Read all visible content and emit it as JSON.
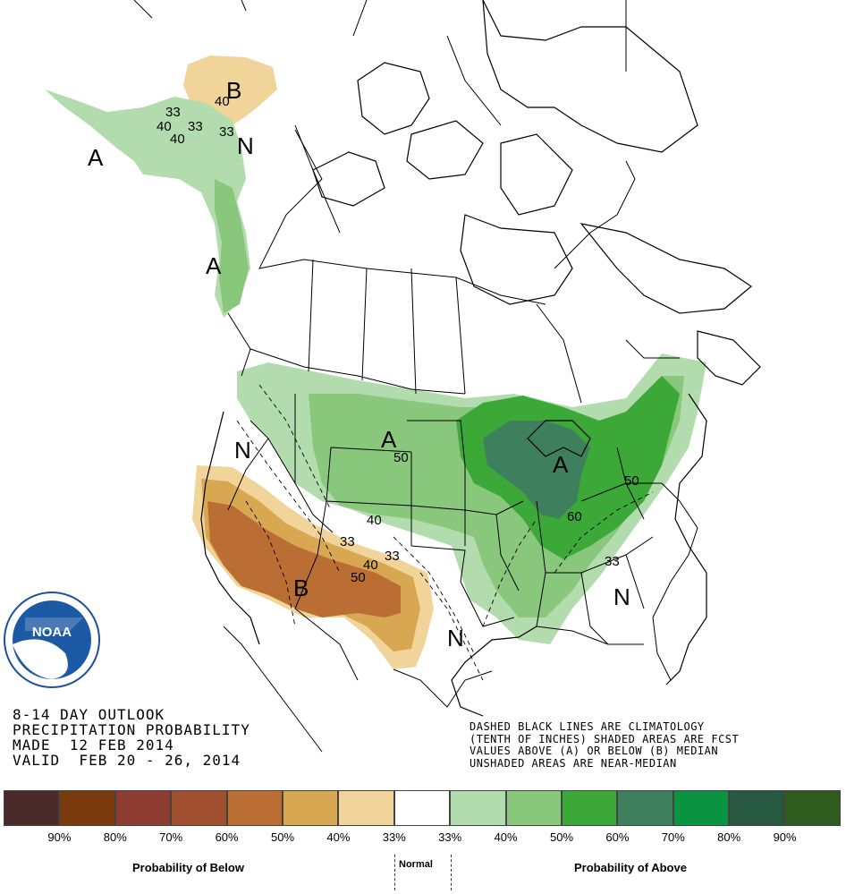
{
  "title_lines": [
    "8-14 DAY OUTLOOK",
    "PRECIPITATION PROBABILITY",
    "MADE  12 FEB 2014",
    "VALID  FEB 20 - 26, 2014"
  ],
  "notes": [
    "DASHED BLACK LINES ARE CLIMATOLOGY",
    "(TENTH OF INCHES) SHADED AREAS ARE FCST",
    "VALUES ABOVE (A) OR BELOW (B) MEDIAN",
    "UNSHADED AREAS ARE NEAR-MEDIAN"
  ],
  "logo_text": "NOAA",
  "legend": {
    "colors": [
      "#4a2a2a",
      "#7a3b0c",
      "#8e3b30",
      "#a0502e",
      "#bb6e34",
      "#d8a752",
      "#f0d49a",
      "#ffffff",
      "#b2dcae",
      "#88c77c",
      "#3ca838",
      "#3e7f5e",
      "#0a9442",
      "#26593f",
      "#2f5c1e"
    ],
    "tick_labels": [
      "90%",
      "80%",
      "70%",
      "60%",
      "50%",
      "40%",
      "33%",
      "33%",
      "40%",
      "50%",
      "60%",
      "70%",
      "80%",
      "90%"
    ],
    "below_caption": "Probability of Below",
    "normal_caption": "Normal",
    "above_caption": "Probability of Above"
  },
  "map_labels": {
    "alaska_B": "B",
    "alaska_40": "40",
    "alaska_33a": "33",
    "alaska_40b": "40",
    "alaska_40c": "40",
    "alaska_33b": "33",
    "alaska_33c": "33",
    "alaska_N": "N",
    "alaska_A": "A",
    "panhandle_A": "A",
    "west_N": "N",
    "plains_A": "A",
    "plains_50": "50",
    "plains_40": "40",
    "plains_33": "33",
    "sw_B": "B",
    "sw_50": "50",
    "sw_40": "40",
    "sw_33": "33",
    "lakes_A": "A",
    "lakes_60": "60",
    "east_50": "50",
    "se_33": "33",
    "texas_N": "N",
    "se_N": "N"
  }
}
